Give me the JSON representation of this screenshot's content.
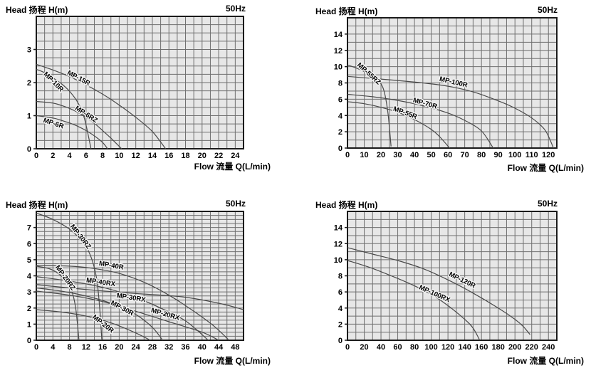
{
  "page": {
    "background": "#ffffff"
  },
  "colors": {
    "plot_bg": "#e7e7e7",
    "grid": "#6f6f6f",
    "frame": "#1a1a1a",
    "curve": "#4a4a4a",
    "text": "#000000",
    "label_halo": "#f2f2f2"
  },
  "chart_data": [
    {
      "type": "line",
      "title": "Head 扬程 H(m)",
      "badge": "50Hz",
      "xlabel": "Flow 流量 Q(L/min)",
      "xlim": [
        0,
        25
      ],
      "ylim": [
        0,
        4
      ],
      "x_grid_step": 1,
      "y_grid_step": 0.25,
      "x_ticks": [
        0,
        2,
        4,
        6,
        8,
        10,
        12,
        14,
        16,
        18,
        20,
        22,
        24
      ],
      "y_ticks": [
        0,
        1,
        2,
        3
      ],
      "grid": true,
      "legend": "labels-on-curves",
      "series": [
        {
          "name": "MP-15R",
          "points": [
            [
              0,
              2.55
            ],
            [
              2,
              2.38
            ],
            [
              4,
              2.18
            ],
            [
              6,
              1.93
            ],
            [
              8,
              1.65
            ],
            [
              10,
              1.32
            ],
            [
              12,
              0.95
            ],
            [
              14,
              0.52
            ],
            [
              15.6,
              0
            ]
          ],
          "label": {
            "x": 5.0,
            "y": 2.08,
            "angle": 28
          }
        },
        {
          "name": "MP-10R",
          "points": [
            [
              0,
              2.4
            ],
            [
              1,
              2.3
            ],
            [
              2,
              2.14
            ],
            [
              3,
              1.97
            ],
            [
              4,
              1.74
            ],
            [
              5,
              1.4
            ],
            [
              5.8,
              0.92
            ],
            [
              6.6,
              0
            ]
          ],
          "label": {
            "x": 1.9,
            "y": 1.98,
            "angle": 45
          }
        },
        {
          "name": "MP-6RZ",
          "points": [
            [
              0,
              1.43
            ],
            [
              2,
              1.38
            ],
            [
              3,
              1.31
            ],
            [
              4,
              1.22
            ],
            [
              5,
              1.1
            ],
            [
              6,
              0.95
            ],
            [
              7,
              0.77
            ],
            [
              8,
              0.55
            ],
            [
              9,
              0.32
            ],
            [
              10.3,
              0
            ]
          ],
          "label": {
            "x": 5.9,
            "y": 0.99,
            "angle": 33
          }
        },
        {
          "name": "MP-6R",
          "points": [
            [
              0,
              1.0
            ],
            [
              2,
              0.93
            ],
            [
              3,
              0.86
            ],
            [
              4,
              0.78
            ],
            [
              5,
              0.68
            ],
            [
              6,
              0.55
            ],
            [
              7,
              0.39
            ],
            [
              8,
              0.19
            ],
            [
              8.6,
              0
            ]
          ],
          "label": {
            "x": 2.0,
            "y": 0.71,
            "angle": 18
          }
        }
      ]
    },
    {
      "type": "line",
      "title": "Head 扬程 H(m)",
      "badge": "50Hz",
      "xlabel": "Flow 流量 Q(L/min)",
      "xlim": [
        0,
        125
      ],
      "ylim": [
        0,
        16
      ],
      "x_grid_step": 5,
      "y_grid_step": 1,
      "x_ticks": [
        0,
        10,
        20,
        30,
        40,
        50,
        60,
        70,
        80,
        90,
        100,
        110,
        120
      ],
      "y_ticks": [
        0,
        2,
        4,
        6,
        8,
        10,
        12,
        14
      ],
      "grid": true,
      "legend": "labels-on-curves",
      "series": [
        {
          "name": "MP-55RZ",
          "points": [
            [
              0,
              10.2
            ],
            [
              5,
              9.85
            ],
            [
              10,
              9.4
            ],
            [
              15,
              8.85
            ],
            [
              18,
              8.35
            ],
            [
              20,
              7.9
            ],
            [
              22,
              6.9
            ],
            [
              24,
              4.6
            ],
            [
              25,
              2.6
            ],
            [
              26,
              0.2
            ]
          ],
          "label": {
            "x": 12,
            "y": 8.95,
            "angle": 42
          }
        },
        {
          "name": "MP-100R",
          "points": [
            [
              0,
              8.8
            ],
            [
              15,
              8.55
            ],
            [
              30,
              8.3
            ],
            [
              45,
              8.0
            ],
            [
              60,
              7.6
            ],
            [
              75,
              6.9
            ],
            [
              90,
              5.8
            ],
            [
              100,
              4.9
            ],
            [
              110,
              3.7
            ],
            [
              118,
              2.2
            ],
            [
              123,
              0
            ]
          ],
          "label": {
            "x": 63,
            "y": 7.85,
            "angle": 13
          }
        },
        {
          "name": "MP-70R",
          "points": [
            [
              0,
              6.6
            ],
            [
              15,
              6.3
            ],
            [
              30,
              5.85
            ],
            [
              45,
              5.2
            ],
            [
              60,
              4.3
            ],
            [
              70,
              3.4
            ],
            [
              80,
              2.1
            ],
            [
              87,
              0
            ]
          ],
          "label": {
            "x": 46,
            "y": 5.25,
            "angle": 16
          }
        },
        {
          "name": "MP-55R",
          "points": [
            [
              0,
              5.7
            ],
            [
              10,
              5.45
            ],
            [
              20,
              5.0
            ],
            [
              30,
              4.4
            ],
            [
              40,
              3.5
            ],
            [
              50,
              2.3
            ],
            [
              55,
              1.4
            ],
            [
              61,
              0
            ]
          ],
          "label": {
            "x": 34,
            "y": 4.1,
            "angle": 20
          }
        }
      ]
    },
    {
      "type": "line",
      "title": "Head 扬程 H(m)",
      "badge": "50Hz",
      "xlabel": "Flow 流量 Q(L/min)",
      "xlim": [
        0,
        50
      ],
      "ylim": [
        0,
        8
      ],
      "x_grid_step": 2,
      "y_grid_step": 0.25,
      "x_ticks": [
        0,
        4,
        8,
        12,
        16,
        20,
        24,
        28,
        32,
        36,
        40,
        44,
        48
      ],
      "y_ticks": [
        0,
        1,
        2,
        3,
        4,
        5,
        6,
        7
      ],
      "grid": true,
      "legend": "labels-on-curves",
      "series": [
        {
          "name": "MP-30RZ",
          "points": [
            [
              0,
              7.9
            ],
            [
              4,
              7.5
            ],
            [
              8,
              6.9
            ],
            [
              11,
              6.15
            ],
            [
              13,
              5.3
            ],
            [
              14.5,
              3.9
            ],
            [
              15.3,
              2.0
            ],
            [
              15.8,
              0
            ]
          ],
          "label": {
            "x": 10.3,
            "y": 6.35,
            "angle": 52
          }
        },
        {
          "name": "MP-40R",
          "points": [
            [
              0,
              4.65
            ],
            [
              8,
              4.6
            ],
            [
              14,
              4.45
            ],
            [
              20,
              4.15
            ],
            [
              26,
              3.6
            ],
            [
              32,
              2.8
            ],
            [
              38,
              1.8
            ],
            [
              43,
              0.85
            ],
            [
              46.5,
              0
            ]
          ],
          "label": {
            "x": 18,
            "y": 4.52,
            "angle": 10
          }
        },
        {
          "name": "MP-20RZ",
          "points": [
            [
              0,
              4.6
            ],
            [
              3,
              4.45
            ],
            [
              5,
              4.2
            ],
            [
              7,
              3.75
            ],
            [
              8.5,
              3.1
            ],
            [
              9.5,
              2.0
            ],
            [
              10.3,
              0
            ]
          ],
          "label": {
            "x": 6.6,
            "y": 3.8,
            "angle": 54
          }
        },
        {
          "name": "MP-40RX",
          "points": [
            [
              0,
              3.95
            ],
            [
              6,
              3.75
            ],
            [
              12,
              3.5
            ],
            [
              18,
              3.15
            ],
            [
              24,
              2.65
            ],
            [
              30,
              2.0
            ],
            [
              36,
              1.2
            ],
            [
              41.5,
              0
            ]
          ],
          "label": {
            "x": 15.5,
            "y": 3.48,
            "angle": 8
          }
        },
        {
          "name": "MP-30RX",
          "points": [
            [
              0,
              3.45
            ],
            [
              12,
              3.15
            ],
            [
              24,
              2.9
            ],
            [
              35,
              2.7
            ],
            [
              44,
              2.3
            ],
            [
              50,
              1.9
            ]
          ],
          "label": {
            "x": 22.8,
            "y": 2.52,
            "angle": 9
          }
        },
        {
          "name": "MP-30R",
          "points": [
            [
              0,
              3.25
            ],
            [
              6,
              3.05
            ],
            [
              12,
              2.75
            ],
            [
              18,
              2.3
            ],
            [
              24,
              1.6
            ],
            [
              28,
              0.8
            ],
            [
              30.5,
              0
            ]
          ],
          "label": {
            "x": 20.5,
            "y": 1.88,
            "angle": 28
          }
        },
        {
          "name": "MP-20RX",
          "points": [
            [
              0,
              3.05
            ],
            [
              8,
              2.8
            ],
            [
              16,
              2.4
            ],
            [
              24,
              1.8
            ],
            [
              32,
              1.15
            ],
            [
              40,
              0.5
            ],
            [
              44,
              0
            ]
          ],
          "label": {
            "x": 31,
            "y": 1.5,
            "angle": 16
          }
        },
        {
          "name": "MP-20R",
          "points": [
            [
              0,
              1.9
            ],
            [
              6,
              1.75
            ],
            [
              12,
              1.5
            ],
            [
              18,
              1.08
            ],
            [
              24,
              0.45
            ],
            [
              27.5,
              0
            ]
          ],
          "label": {
            "x": 15.8,
            "y": 0.92,
            "angle": 38
          }
        }
      ]
    },
    {
      "type": "line",
      "title": "Head 扬程 H(m)",
      "badge": "50Hz",
      "xlabel": "Flow 流量 Q(L/min)",
      "xlim": [
        0,
        250
      ],
      "ylim": [
        0,
        16
      ],
      "x_grid_step": 10,
      "y_grid_step": 1,
      "x_ticks": [
        0,
        20,
        40,
        60,
        80,
        100,
        120,
        140,
        160,
        180,
        200,
        220,
        240
      ],
      "y_ticks": [
        0,
        2,
        4,
        6,
        8,
        10,
        12,
        14
      ],
      "grid": true,
      "legend": "labels-on-curves",
      "series": [
        {
          "name": "MP-120R",
          "points": [
            [
              0,
              11.5
            ],
            [
              30,
              10.7
            ],
            [
              60,
              9.9
            ],
            [
              90,
              8.9
            ],
            [
              120,
              7.5
            ],
            [
              150,
              5.85
            ],
            [
              180,
              4.0
            ],
            [
              200,
              2.6
            ],
            [
              210,
              1.7
            ],
            [
              218,
              0.7
            ]
          ],
          "label": {
            "x": 136,
            "y": 7.25,
            "angle": 26
          }
        },
        {
          "name": "MP-100RX",
          "points": [
            [
              0,
              9.9
            ],
            [
              25,
              9.1
            ],
            [
              50,
              8.1
            ],
            [
              75,
              7.0
            ],
            [
              100,
              5.7
            ],
            [
              120,
              4.3
            ],
            [
              140,
              2.6
            ],
            [
              150,
              1.5
            ],
            [
              158,
              0
            ]
          ],
          "label": {
            "x": 103,
            "y": 5.55,
            "angle": 24
          }
        }
      ]
    }
  ]
}
